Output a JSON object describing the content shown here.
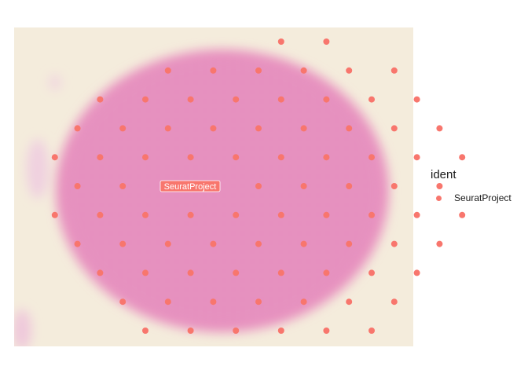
{
  "chart_data": {
    "type": "scatter",
    "title": "",
    "xlabel": "",
    "ylabel": "",
    "grid": false,
    "legend_position": "right",
    "legend": {
      "title": "ident",
      "entries": [
        {
          "name": "SeuratProject",
          "color": "#F8766D"
        }
      ]
    },
    "background": "H&E tissue image",
    "series": [
      {
        "name": "SeuratProject",
        "color": "#F8766D",
        "label": "SeuratProject",
        "points": [
          [
            11,
            0
          ],
          [
            13,
            0
          ],
          [
            6,
            1
          ],
          [
            8,
            1
          ],
          [
            10,
            1
          ],
          [
            12,
            1
          ],
          [
            14,
            1
          ],
          [
            16,
            1
          ],
          [
            3,
            2
          ],
          [
            5,
            2
          ],
          [
            7,
            2
          ],
          [
            9,
            2
          ],
          [
            11,
            2
          ],
          [
            13,
            2
          ],
          [
            15,
            2
          ],
          [
            17,
            2
          ],
          [
            2,
            3
          ],
          [
            4,
            3
          ],
          [
            6,
            3
          ],
          [
            8,
            3
          ],
          [
            10,
            3
          ],
          [
            12,
            3
          ],
          [
            14,
            3
          ],
          [
            16,
            3
          ],
          [
            18,
            3
          ],
          [
            1,
            4
          ],
          [
            3,
            4
          ],
          [
            5,
            4
          ],
          [
            7,
            4
          ],
          [
            9,
            4
          ],
          [
            11,
            4
          ],
          [
            13,
            4
          ],
          [
            15,
            4
          ],
          [
            17,
            4
          ],
          [
            19,
            4
          ],
          [
            2,
            5
          ],
          [
            4,
            5
          ],
          [
            6,
            5
          ],
          [
            8,
            5
          ],
          [
            10,
            5
          ],
          [
            12,
            5
          ],
          [
            14,
            5
          ],
          [
            16,
            5
          ],
          [
            18,
            5
          ],
          [
            1,
            6
          ],
          [
            3,
            6
          ],
          [
            5,
            6
          ],
          [
            7,
            6
          ],
          [
            9,
            6
          ],
          [
            11,
            6
          ],
          [
            13,
            6
          ],
          [
            15,
            6
          ],
          [
            17,
            6
          ],
          [
            19,
            6
          ],
          [
            2,
            7
          ],
          [
            4,
            7
          ],
          [
            6,
            7
          ],
          [
            8,
            7
          ],
          [
            10,
            7
          ],
          [
            12,
            7
          ],
          [
            14,
            7
          ],
          [
            16,
            7
          ],
          [
            18,
            7
          ],
          [
            3,
            8
          ],
          [
            5,
            8
          ],
          [
            7,
            8
          ],
          [
            9,
            8
          ],
          [
            11,
            8
          ],
          [
            13,
            8
          ],
          [
            15,
            8
          ],
          [
            17,
            8
          ],
          [
            4,
            9
          ],
          [
            6,
            9
          ],
          [
            8,
            9
          ],
          [
            10,
            9
          ],
          [
            12,
            9
          ],
          [
            14,
            9
          ],
          [
            16,
            9
          ],
          [
            5,
            10
          ],
          [
            7,
            10
          ],
          [
            9,
            10
          ],
          [
            11,
            10
          ],
          [
            13,
            10
          ],
          [
            15,
            10
          ]
        ]
      }
    ]
  }
}
